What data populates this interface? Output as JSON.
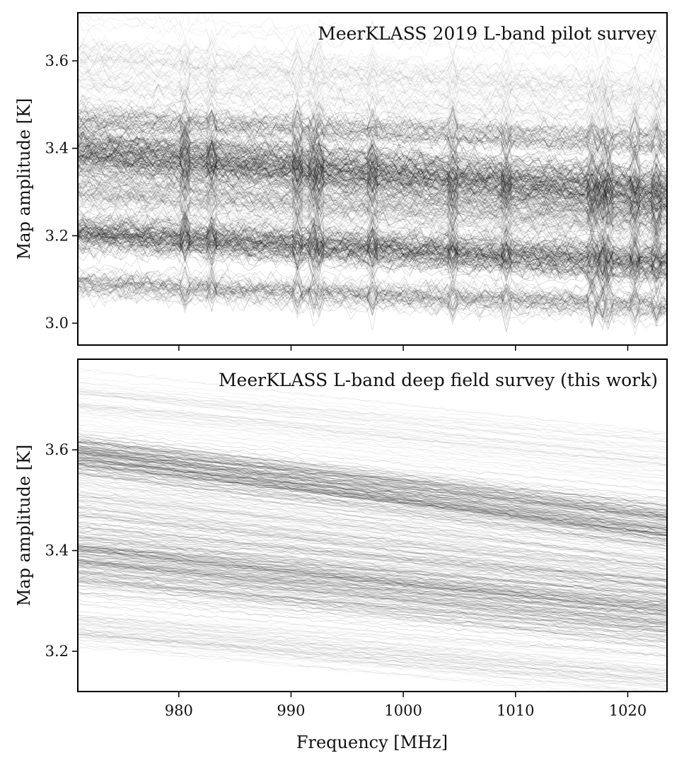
{
  "chart_data": [
    {
      "type": "line",
      "title": "MeerKLASS 2019 L-band pilot survey",
      "ylabel": "Map amplitude [K]",
      "xlabel": "",
      "xlim": [
        971,
        1023.5
      ],
      "ylim": [
        2.95,
        3.71
      ],
      "x_ticks": [
        980,
        990,
        1000,
        1010,
        1020
      ],
      "y_ticks": [
        3.0,
        3.2,
        3.4,
        3.6
      ],
      "y_tick_labels": [
        "3.0",
        "3.2",
        "3.4",
        "3.6"
      ],
      "grid": false,
      "series_description": "several hundred per-pixel spectra, all black semi-transparent",
      "noise_level": 0.01,
      "bands": [
        {
          "y_start": 3.395,
          "y_end": 3.3,
          "spread": 0.05,
          "count": 120,
          "opacity": 0.18
        },
        {
          "y_start": 3.2,
          "y_end": 3.13,
          "spread": 0.03,
          "count": 90,
          "opacity": 0.18
        },
        {
          "y_start": 3.09,
          "y_end": 3.04,
          "spread": 0.025,
          "count": 45,
          "opacity": 0.14
        },
        {
          "y_start": 3.47,
          "y_end": 3.41,
          "spread": 0.03,
          "count": 45,
          "opacity": 0.14
        },
        {
          "y_start": 3.3,
          "y_end": 3.23,
          "spread": 0.06,
          "count": 70,
          "opacity": 0.12
        },
        {
          "y_start": 3.58,
          "y_end": 3.5,
          "spread": 0.07,
          "count": 55,
          "opacity": 0.07
        }
      ],
      "rfi_spikes": [
        980.7,
        982.9,
        990.7,
        992.2,
        997.2,
        1004.4,
        1009.2,
        1016.7,
        1018.0,
        1020.6,
        1022.7
      ]
    },
    {
      "type": "line",
      "title": "MeerKLASS L-band deep field survey (this work)",
      "ylabel": "Map amplitude [K]",
      "xlabel": "Frequency [MHz]",
      "xlim": [
        971,
        1023.5
      ],
      "ylim": [
        3.12,
        3.78
      ],
      "x_ticks": [
        980,
        990,
        1000,
        1010,
        1020
      ],
      "x_tick_labels": [
        "980",
        "990",
        "1000",
        "1010",
        "1020"
      ],
      "y_ticks": [
        3.2,
        3.4,
        3.6
      ],
      "y_tick_labels": [
        "3.2",
        "3.4",
        "3.6"
      ],
      "grid": false,
      "series_description": "several hundred smooth per-pixel spectra, all black semi-transparent",
      "noise_level": 0.0015,
      "bands": [
        {
          "y_start": 3.59,
          "y_end": 3.45,
          "spread": 0.035,
          "count": 110,
          "opacity": 0.16
        },
        {
          "y_start": 3.38,
          "y_end": 3.27,
          "spread": 0.06,
          "count": 150,
          "opacity": 0.14
        },
        {
          "y_start": 3.5,
          "y_end": 3.37,
          "spread": 0.05,
          "count": 60,
          "opacity": 0.1
        },
        {
          "y_start": 3.25,
          "y_end": 3.15,
          "spread": 0.04,
          "count": 50,
          "opacity": 0.08
        },
        {
          "y_start": 3.7,
          "y_end": 3.58,
          "spread": 0.05,
          "count": 40,
          "opacity": 0.07
        }
      ]
    }
  ]
}
